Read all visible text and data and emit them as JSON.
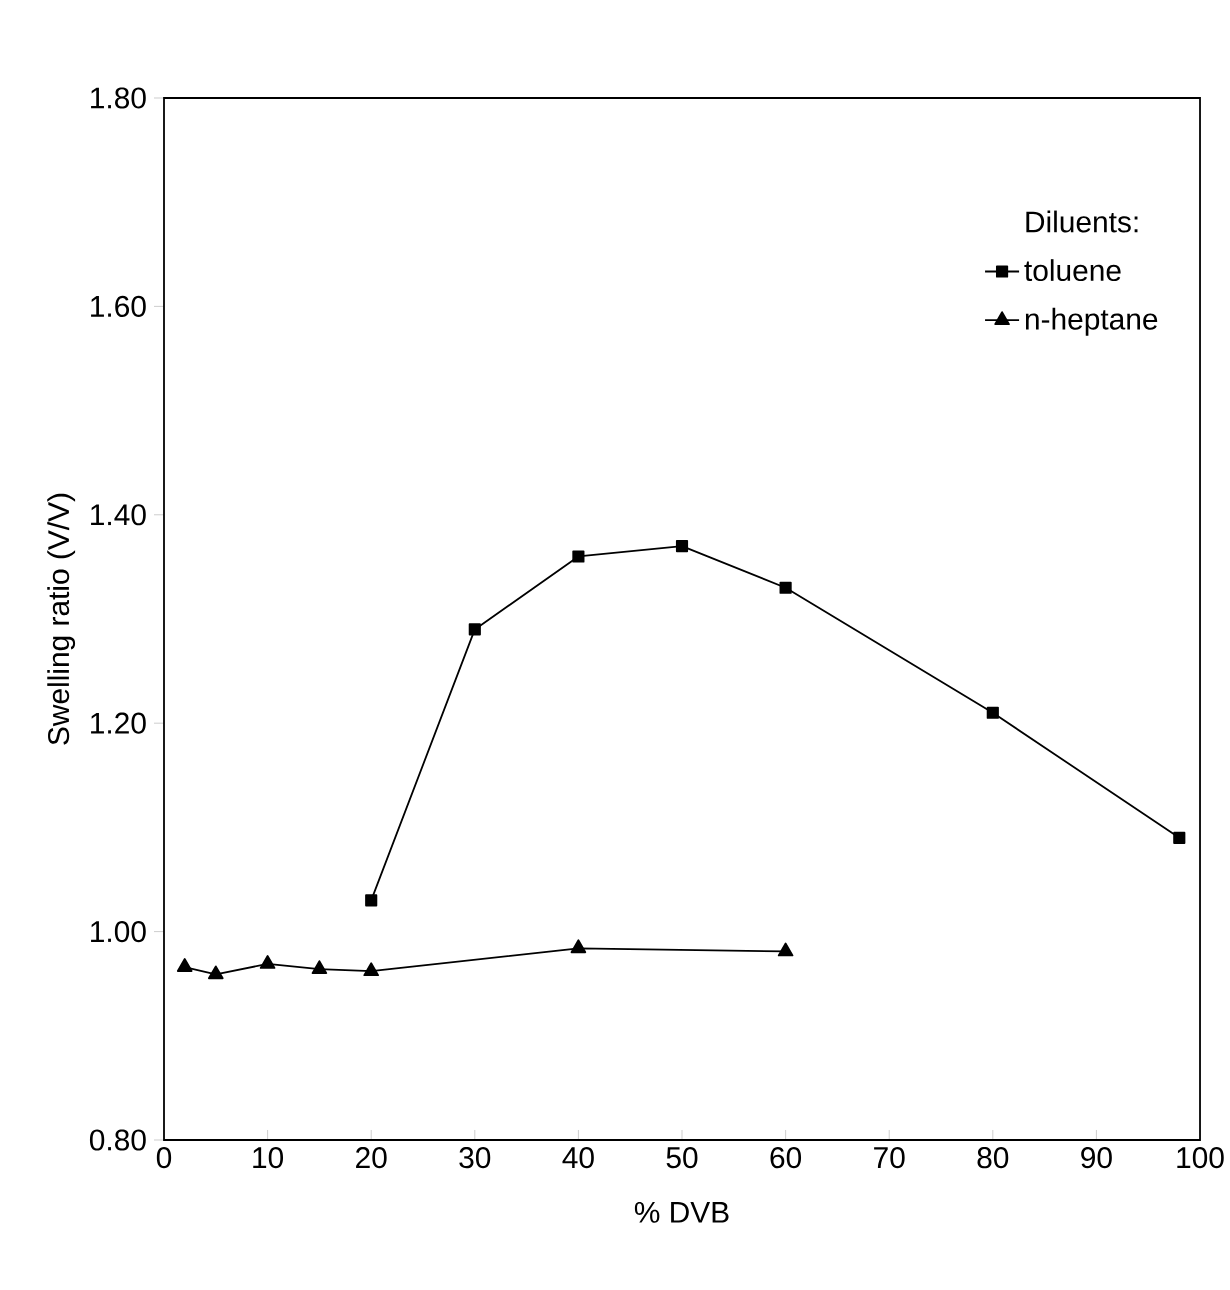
{
  "chart_data": {
    "type": "line",
    "xlabel": "% DVB",
    "ylabel": "Swelling ratio (V/V)",
    "legend_title": "Diluents:",
    "legend": "top right",
    "xlim": [
      0,
      100
    ],
    "xticks": [
      0,
      10,
      20,
      30,
      40,
      50,
      60,
      70,
      80,
      90,
      100
    ],
    "ylim": [
      0.8,
      1.8
    ],
    "yticks": [
      {
        "value": 0.8,
        "label": "0.80"
      },
      {
        "value": 1.0,
        "label": "1.00"
      },
      {
        "value": 1.2,
        "label": "1.20"
      },
      {
        "value": 1.4,
        "label": "1.40"
      },
      {
        "value": 1.6,
        "label": "1.60"
      },
      {
        "value": 1.8,
        "label": "1.80"
      }
    ],
    "grid": false,
    "line_style": "solid",
    "series": [
      {
        "name": "toluene",
        "color": "#000000",
        "marker": "square",
        "x": [
          20,
          30,
          40,
          50,
          60,
          80,
          98
        ],
        "values": [
          1.03,
          1.29,
          1.36,
          1.37,
          1.33,
          1.21,
          1.09
        ]
      },
      {
        "name": "n-heptane",
        "color": "#000000",
        "marker": "triangle",
        "x": [
          2,
          5,
          10,
          15,
          20,
          40,
          60
        ],
        "values": [
          0.966,
          0.959,
          0.969,
          0.964,
          0.962,
          0.984,
          0.981
        ]
      }
    ]
  }
}
